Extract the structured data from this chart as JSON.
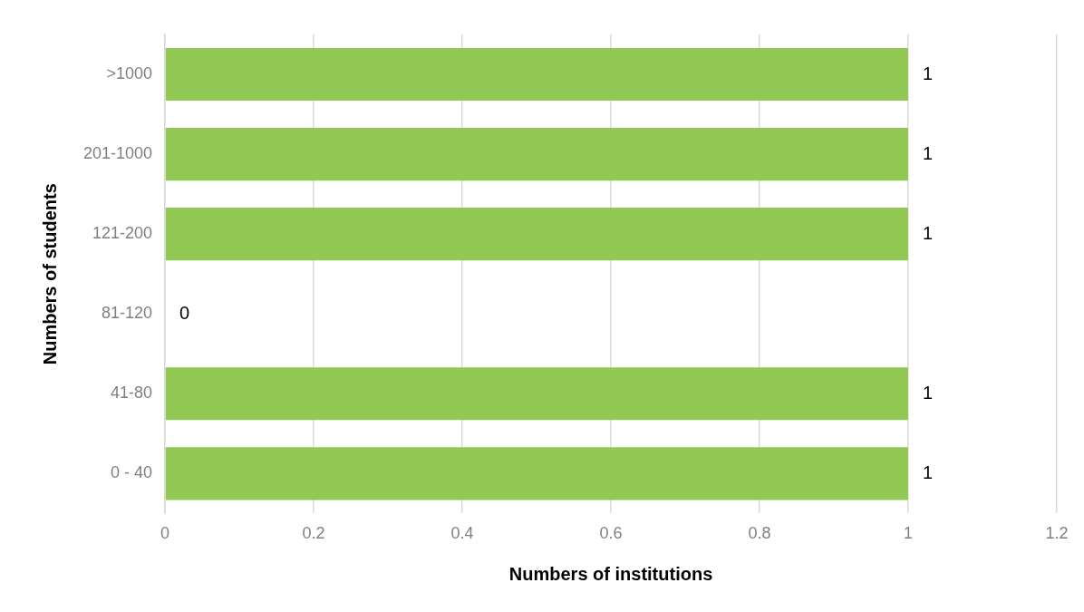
{
  "chart_data": {
    "type": "bar",
    "orientation": "horizontal",
    "xlabel": "Numbers of institutions",
    "ylabel": "Numbers of students",
    "categories": [
      ">1000",
      "201-1000",
      "121-200",
      "81-120",
      "41-80",
      "0 - 40"
    ],
    "values": [
      1,
      1,
      1,
      0,
      1,
      1
    ],
    "color": "#92c955",
    "xlim": [
      0,
      1.2
    ],
    "xticks": [
      0,
      0.2,
      0.4,
      0.6,
      0.8,
      1,
      1.2
    ],
    "grid": "x",
    "data_labels": true
  }
}
